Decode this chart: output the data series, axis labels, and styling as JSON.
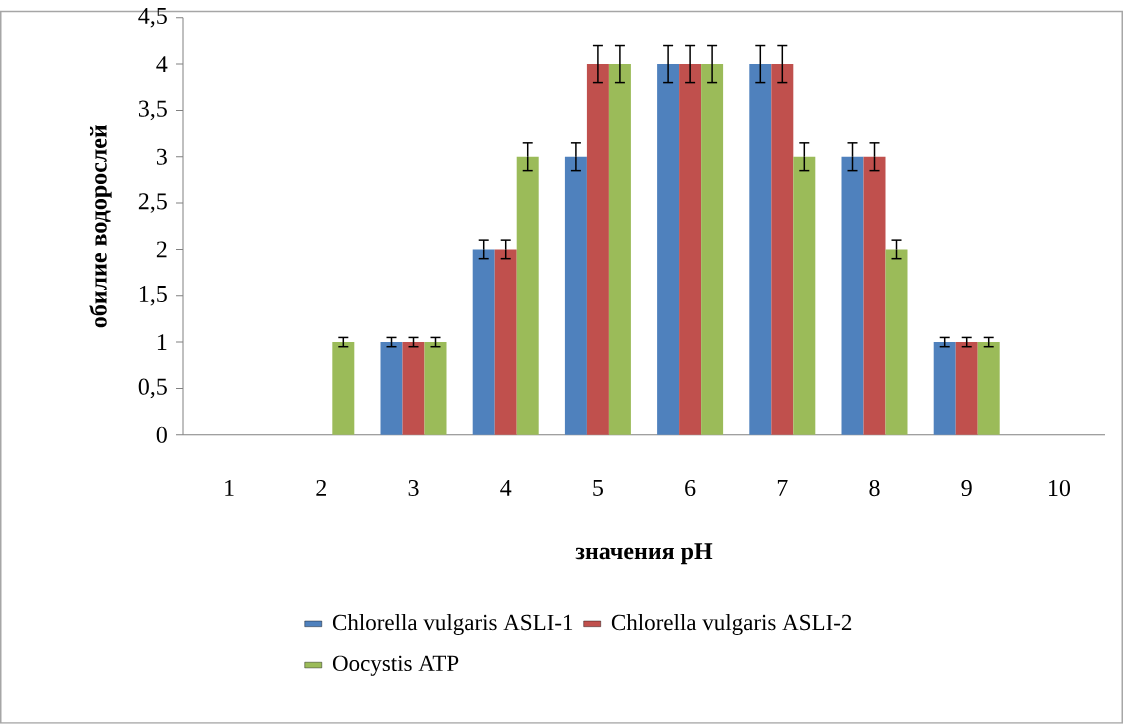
{
  "chart_data": {
    "type": "bar",
    "xlabel": "значения pH",
    "ylabel": "обилие водорослей",
    "categories": [
      "1",
      "2",
      "3",
      "4",
      "5",
      "6",
      "7",
      "8",
      "9",
      "10"
    ],
    "series": [
      {
        "name": "Chlorella vulgaris ASLI-1",
        "color": "#4f81bd",
        "values": [
          null,
          null,
          1,
          2,
          3,
          4,
          4,
          3,
          1,
          null
        ],
        "errors": [
          null,
          null,
          0.05,
          0.1,
          0.15,
          0.2,
          0.2,
          0.15,
          0.05,
          null
        ]
      },
      {
        "name": "Chlorella vulgaris ASLI-2",
        "color": "#c0504d",
        "values": [
          null,
          null,
          1,
          2,
          4,
          4,
          4,
          3,
          1,
          null
        ],
        "errors": [
          null,
          null,
          0.05,
          0.1,
          0.2,
          0.2,
          0.2,
          0.15,
          0.05,
          null
        ]
      },
      {
        "name": "Oocystis ATP",
        "color": "#9bbb59",
        "values": [
          null,
          1,
          1,
          3,
          4,
          4,
          3,
          2,
          1,
          null
        ],
        "errors": [
          null,
          0.05,
          0.05,
          0.15,
          0.2,
          0.2,
          0.15,
          0.1,
          0.05,
          null
        ]
      }
    ],
    "ylim": [
      0,
      4.5
    ],
    "yticks": [
      0,
      {
        "value": 0.5,
        "label": "0,5"
      },
      1,
      {
        "value": 1.5,
        "label": "1,5"
      },
      2,
      {
        "value": 2.5,
        "label": "2,5"
      },
      3,
      {
        "value": 3.5,
        "label": "3,5"
      },
      4,
      {
        "value": 4.5,
        "label": "4,5"
      }
    ],
    "legend": "bottom"
  }
}
